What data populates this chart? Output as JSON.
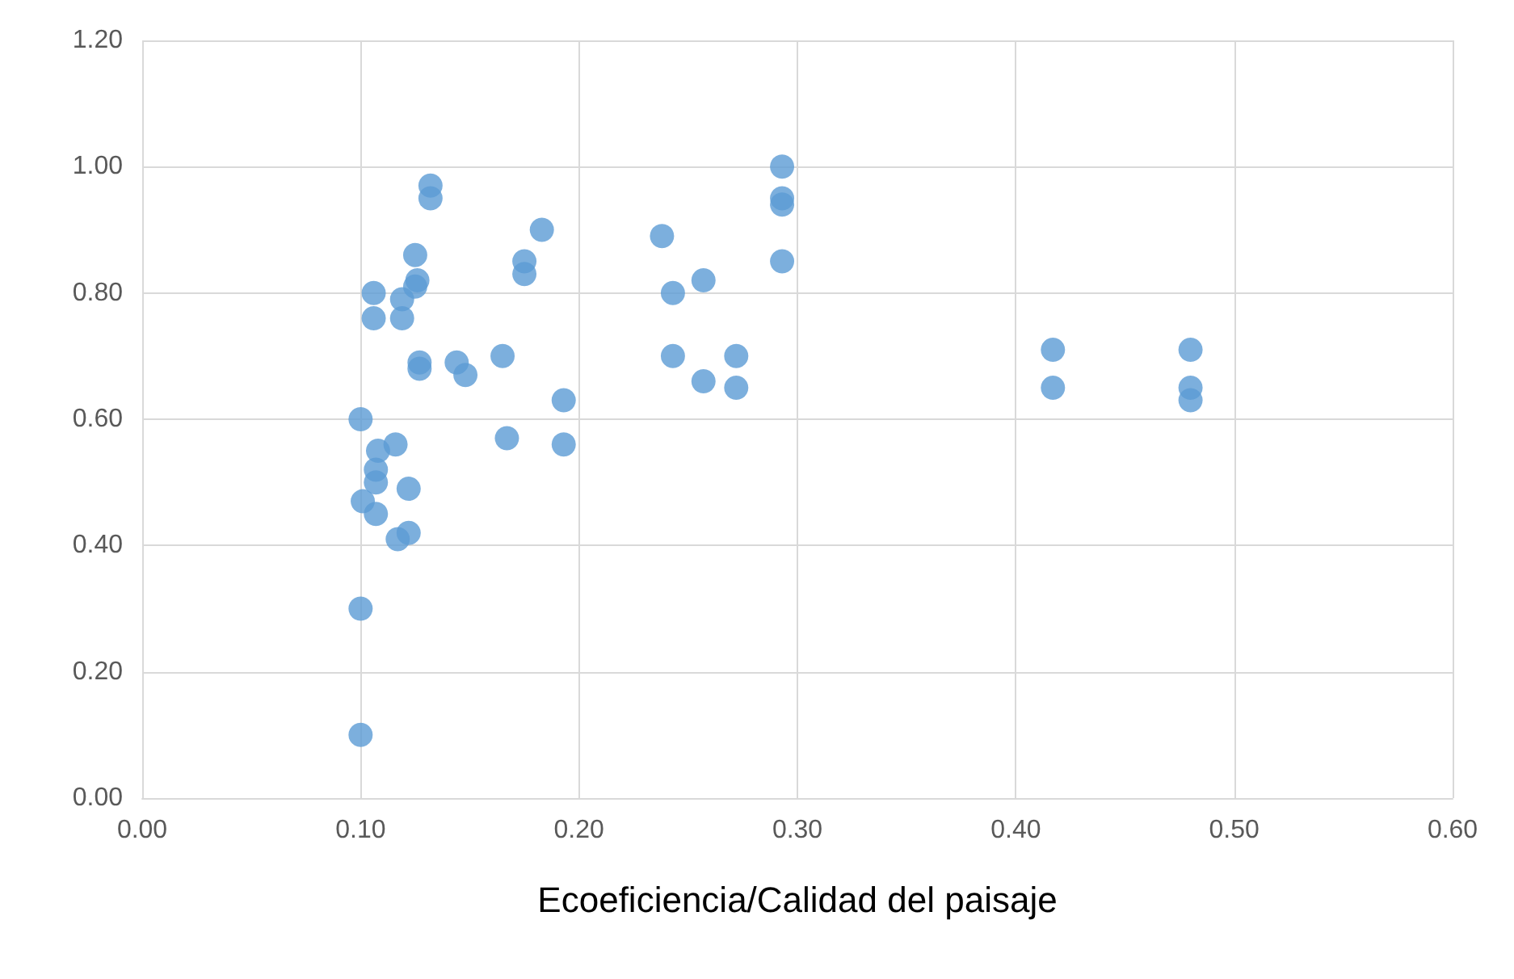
{
  "chart_data": {
    "type": "scatter",
    "xlabel": "Ecoeficiencia/Calidad del paisaje",
    "color": "#5b9bd5",
    "marker": "circle",
    "grid": true,
    "x": [
      0.1,
      0.1,
      0.1,
      0.101,
      0.106,
      0.106,
      0.107,
      0.108,
      0.107,
      0.107,
      0.116,
      0.117,
      0.122,
      0.122,
      0.119,
      0.119,
      0.125,
      0.126,
      0.125,
      0.127,
      0.127,
      0.132,
      0.132,
      0.144,
      0.148,
      0.165,
      0.167,
      0.175,
      0.175,
      0.183,
      0.193,
      0.193,
      0.238,
      0.243,
      0.243,
      0.257,
      0.257,
      0.272,
      0.272,
      0.293,
      0.293,
      0.293,
      0.293,
      0.417,
      0.417,
      0.48,
      0.48,
      0.48
    ],
    "values": [
      0.1,
      0.3,
      0.6,
      0.47,
      0.8,
      0.76,
      0.45,
      0.55,
      0.52,
      0.5,
      0.56,
      0.41,
      0.49,
      0.42,
      0.79,
      0.76,
      0.86,
      0.82,
      0.81,
      0.69,
      0.68,
      0.97,
      0.95,
      0.69,
      0.67,
      0.7,
      0.57,
      0.85,
      0.83,
      0.9,
      0.63,
      0.56,
      0.89,
      0.8,
      0.7,
      0.82,
      0.66,
      0.7,
      0.65,
      1.0,
      0.95,
      0.94,
      0.85,
      0.71,
      0.65,
      0.71,
      0.65,
      0.63
    ],
    "xlim": [
      0,
      0.6
    ],
    "xticks": [
      {
        "value": 0,
        "label": "0.00"
      },
      {
        "value": 0.1,
        "label": "0.10"
      },
      {
        "value": 0.2,
        "label": "0.20"
      },
      {
        "value": 0.3,
        "label": "0.30"
      },
      {
        "value": 0.4,
        "label": "0.40"
      },
      {
        "value": 0.5,
        "label": "0.50"
      },
      {
        "value": 0.6,
        "label": "0.60"
      }
    ],
    "ylim": [
      0,
      1.2
    ],
    "yticks": [
      {
        "value": 0,
        "label": "0.00"
      },
      {
        "value": 0.2,
        "label": "0.20"
      },
      {
        "value": 0.4,
        "label": "0.40"
      },
      {
        "value": 0.6,
        "label": "0.60"
      },
      {
        "value": 0.8,
        "label": "0.80"
      },
      {
        "value": 1,
        "label": "1.00"
      },
      {
        "value": 1.2,
        "label": "1.20"
      }
    ]
  }
}
